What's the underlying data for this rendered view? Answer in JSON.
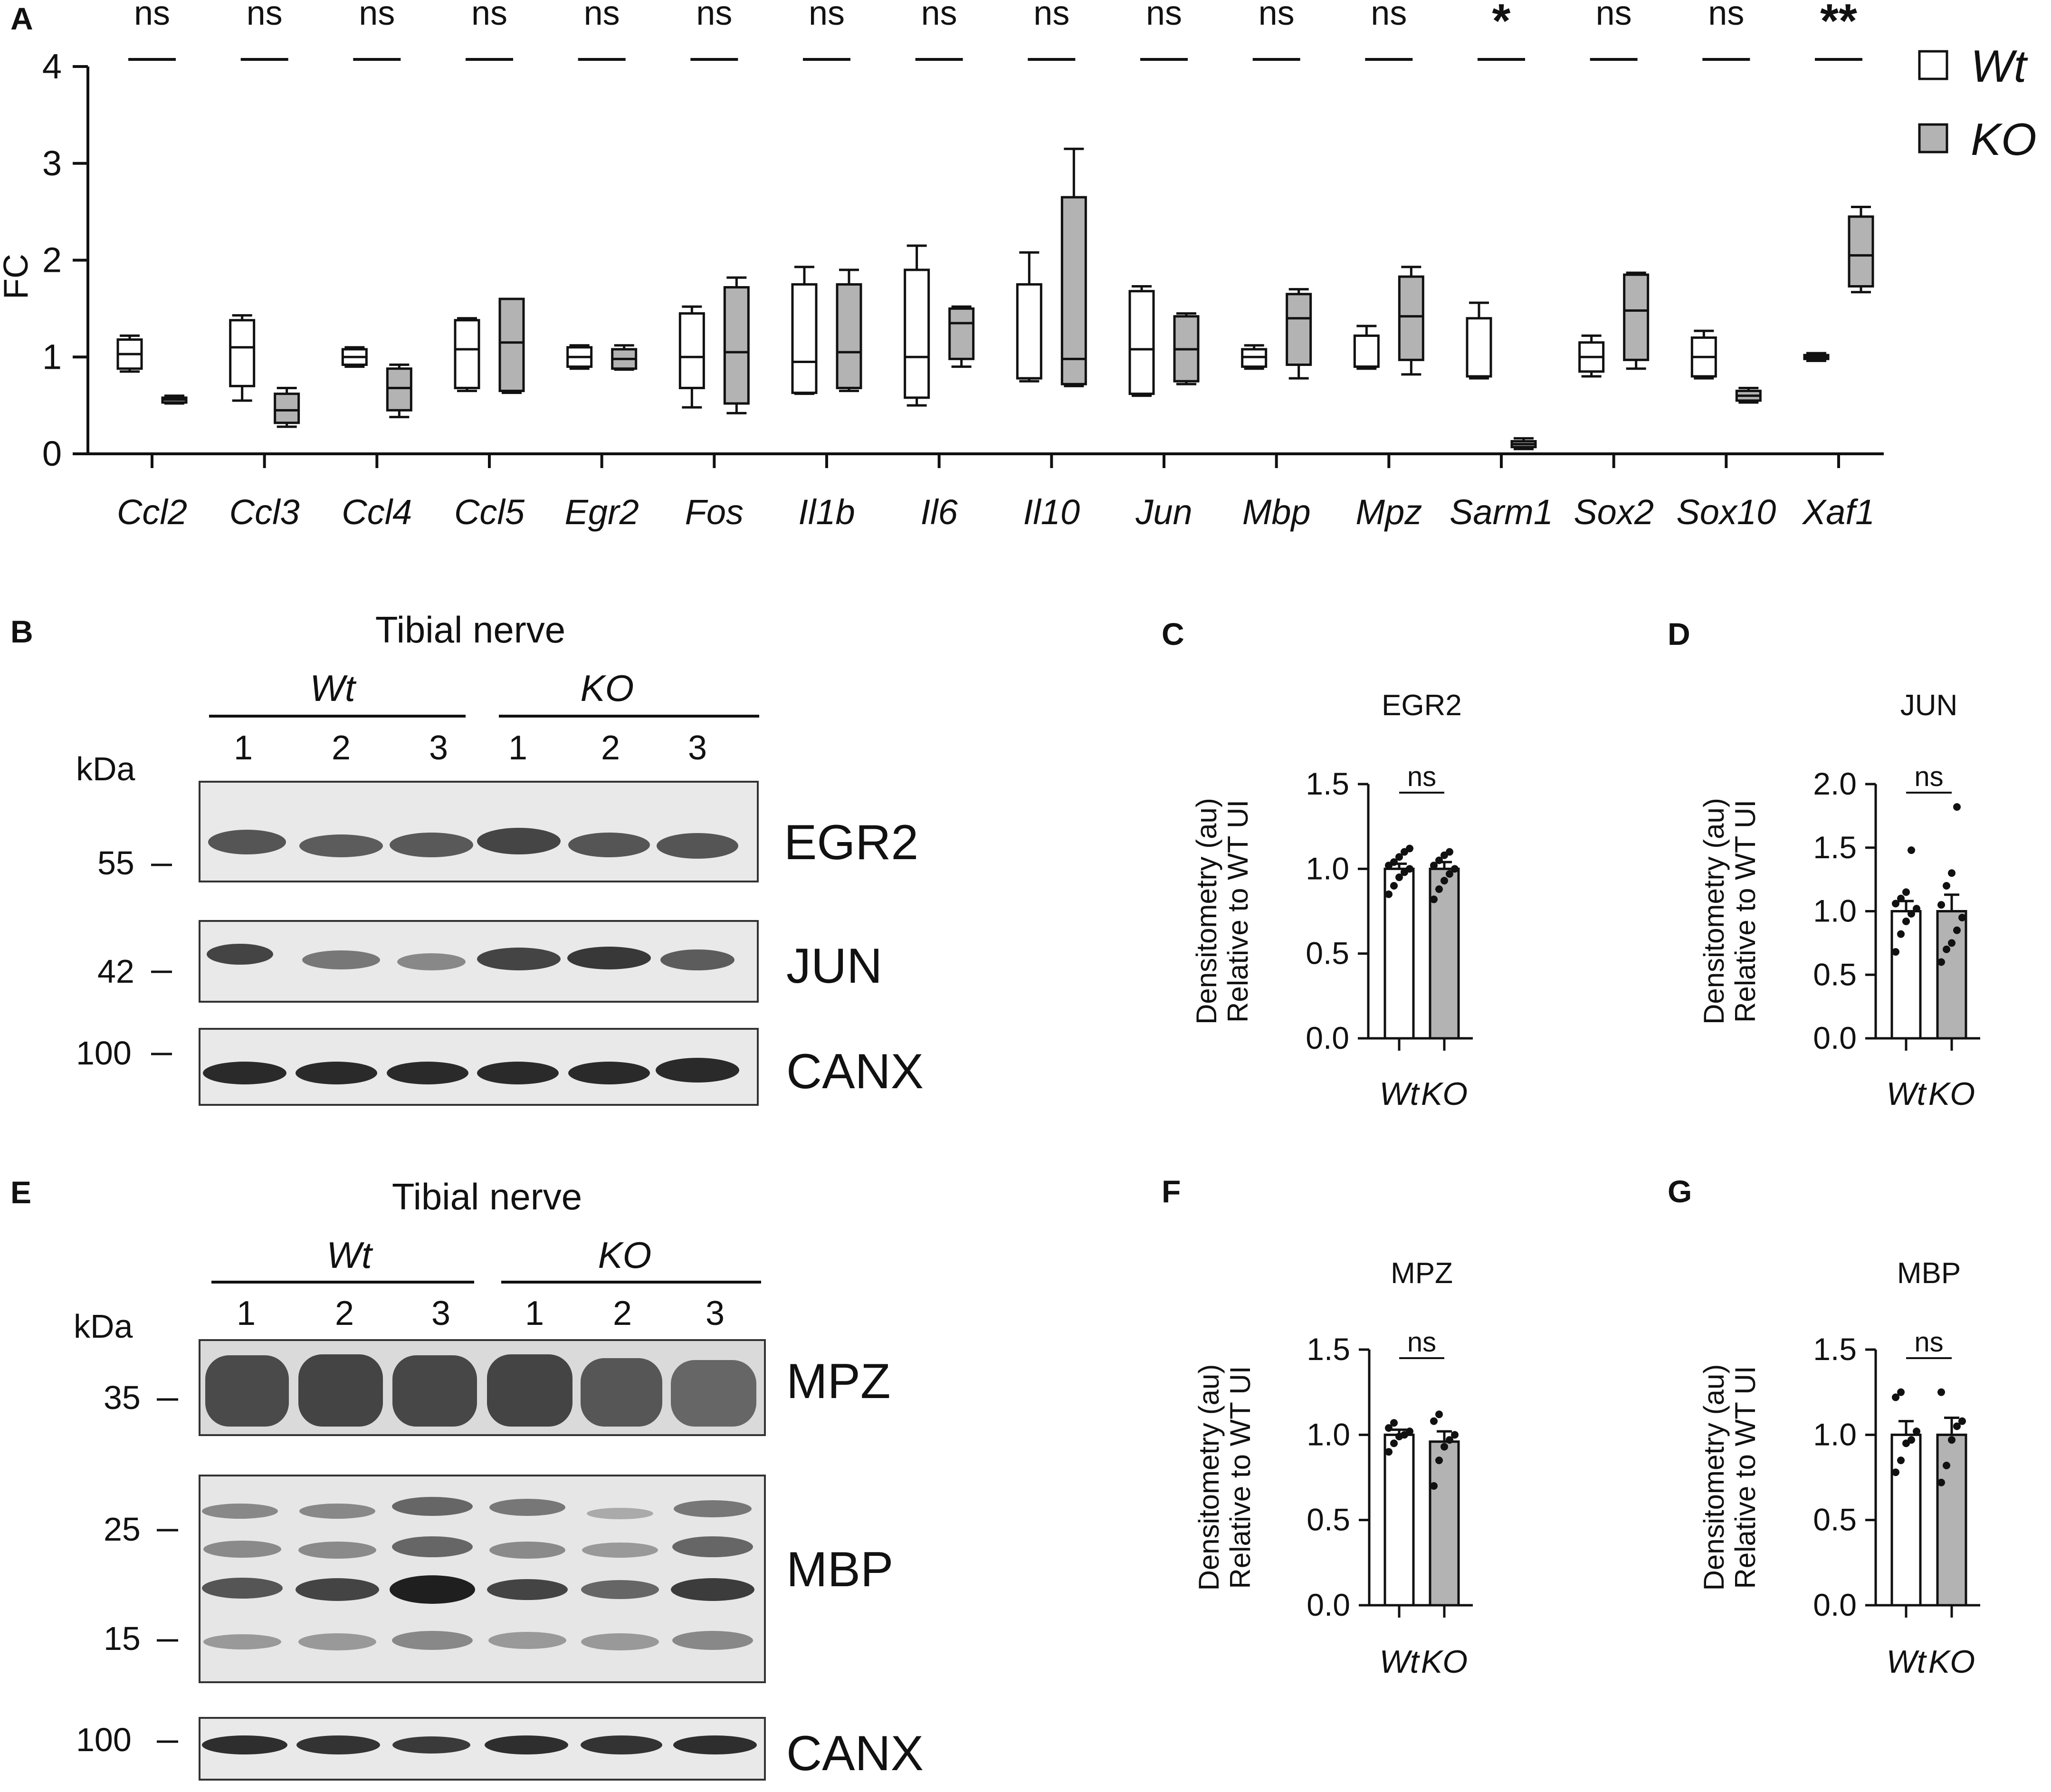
{
  "panels": {
    "A": "A",
    "B": "B",
    "C": "C",
    "D": "D",
    "E": "E",
    "F": "F",
    "G": "G"
  },
  "chart_data": [
    {
      "panel": "A",
      "type": "box",
      "ylabel": "FC",
      "ylim": [
        0,
        4
      ],
      "yticks": [
        "0",
        "1",
        "2",
        "3",
        "4"
      ],
      "categories": [
        "Ccl2",
        "Ccl3",
        "Ccl4",
        "Ccl5",
        "Egr2",
        "Fos",
        "Il1b",
        "Il6",
        "Il10",
        "Jun",
        "Mbp",
        "Mpz",
        "Sarm1",
        "Sox2",
        "Sox10",
        "Xaf1"
      ],
      "significance": [
        "ns",
        "ns",
        "ns",
        "ns",
        "ns",
        "ns",
        "ns",
        "ns",
        "ns",
        "ns",
        "ns",
        "ns",
        "*",
        "ns",
        "ns",
        "**"
      ],
      "legend": [
        {
          "name": "Wt",
          "color": "#ffffff"
        },
        {
          "name": "KO",
          "color": "#b3b3b3"
        }
      ],
      "series": [
        {
          "name": "Wt",
          "boxes": [
            {
              "min": 0.85,
              "q1": 0.88,
              "median": 1.03,
              "q3": 1.18,
              "max": 1.22
            },
            {
              "min": 0.55,
              "q1": 0.7,
              "median": 1.1,
              "q3": 1.38,
              "max": 1.43
            },
            {
              "min": 0.9,
              "q1": 0.92,
              "median": 1.0,
              "q3": 1.08,
              "max": 1.1
            },
            {
              "min": 0.65,
              "q1": 0.68,
              "median": 1.08,
              "q3": 1.38,
              "max": 1.4
            },
            {
              "min": 0.88,
              "q1": 0.9,
              "median": 1.0,
              "q3": 1.1,
              "max": 1.12
            },
            {
              "min": 0.48,
              "q1": 0.68,
              "median": 1.0,
              "q3": 1.45,
              "max": 1.52
            },
            {
              "min": 0.62,
              "q1": 0.63,
              "median": 0.95,
              "q3": 1.75,
              "max": 1.93
            },
            {
              "min": 0.5,
              "q1": 0.58,
              "median": 1.0,
              "q3": 1.9,
              "max": 2.15
            },
            {
              "min": 0.75,
              "q1": 0.78,
              "median": 0.78,
              "q3": 1.75,
              "max": 2.08
            },
            {
              "min": 0.6,
              "q1": 0.62,
              "median": 1.08,
              "q3": 1.68,
              "max": 1.73
            },
            {
              "min": 0.88,
              "q1": 0.9,
              "median": 1.0,
              "q3": 1.08,
              "max": 1.12
            },
            {
              "min": 0.88,
              "q1": 0.9,
              "median": 0.9,
              "q3": 1.22,
              "max": 1.32
            },
            {
              "min": 0.78,
              "q1": 0.8,
              "median": 0.8,
              "q3": 1.4,
              "max": 1.56
            },
            {
              "min": 0.8,
              "q1": 0.85,
              "median": 1.0,
              "q3": 1.15,
              "max": 1.22
            },
            {
              "min": 0.78,
              "q1": 0.8,
              "median": 1.0,
              "q3": 1.2,
              "max": 1.27
            },
            {
              "min": 0.96,
              "q1": 0.98,
              "median": 1.0,
              "q3": 1.02,
              "max": 1.04
            }
          ]
        },
        {
          "name": "KO",
          "boxes": [
            {
              "min": 0.52,
              "q1": 0.53,
              "median": 0.56,
              "q3": 0.58,
              "max": 0.6
            },
            {
              "min": 0.28,
              "q1": 0.32,
              "median": 0.45,
              "q3": 0.62,
              "max": 0.68
            },
            {
              "min": 0.38,
              "q1": 0.45,
              "median": 0.68,
              "q3": 0.88,
              "max": 0.92
            },
            {
              "min": 0.63,
              "q1": 0.65,
              "median": 1.15,
              "q3": 1.6,
              "max": 1.6
            },
            {
              "min": 0.87,
              "q1": 0.88,
              "median": 0.98,
              "q3": 1.08,
              "max": 1.12
            },
            {
              "min": 0.42,
              "q1": 0.52,
              "median": 1.05,
              "q3": 1.72,
              "max": 1.82
            },
            {
              "min": 0.65,
              "q1": 0.68,
              "median": 1.05,
              "q3": 1.75,
              "max": 1.9
            },
            {
              "min": 0.9,
              "q1": 0.98,
              "median": 1.35,
              "q3": 1.5,
              "max": 1.52
            },
            {
              "min": 0.7,
              "q1": 0.72,
              "median": 0.98,
              "q3": 2.65,
              "max": 3.15
            },
            {
              "min": 0.72,
              "q1": 0.75,
              "median": 1.08,
              "q3": 1.42,
              "max": 1.45
            },
            {
              "min": 0.78,
              "q1": 0.92,
              "median": 1.4,
              "q3": 1.65,
              "max": 1.7
            },
            {
              "min": 0.82,
              "q1": 0.97,
              "median": 1.42,
              "q3": 1.83,
              "max": 1.93
            },
            {
              "min": 0.05,
              "q1": 0.07,
              "median": 0.1,
              "q3": 0.13,
              "max": 0.16
            },
            {
              "min": 0.88,
              "q1": 0.97,
              "median": 1.48,
              "q3": 1.85,
              "max": 1.87
            },
            {
              "min": 0.53,
              "q1": 0.55,
              "median": 0.6,
              "q3": 0.65,
              "max": 0.68
            },
            {
              "min": 1.67,
              "q1": 1.73,
              "median": 2.05,
              "q3": 2.45,
              "max": 2.55
            }
          ]
        }
      ]
    },
    {
      "panel": "C",
      "type": "bar",
      "title": "EGR2",
      "ylabel": "Densitometry (au)\nRelative to WT UI",
      "ylim": [
        0,
        1.5
      ],
      "yticks": [
        "0.0",
        "0.5",
        "1.0",
        "1.5"
      ],
      "categories": [
        "Wt",
        "KO"
      ],
      "values": [
        1.0,
        1.0
      ],
      "sem": [
        0.03,
        0.04
      ],
      "points": [
        [
          0.85,
          0.9,
          0.95,
          0.98,
          1.0,
          1.02,
          1.04,
          1.07,
          1.1,
          1.12
        ],
        [
          0.82,
          0.88,
          0.93,
          0.97,
          1.0,
          1.02,
          1.05,
          1.08,
          1.1
        ]
      ],
      "significance": "ns"
    },
    {
      "panel": "D",
      "type": "bar",
      "title": "JUN",
      "ylabel": "Densitometry (au)\nRelative to WT UI",
      "ylim": [
        0,
        2.0
      ],
      "yticks": [
        "0.0",
        "0.5",
        "1.0",
        "1.5",
        "2.0"
      ],
      "categories": [
        "Wt",
        "KO"
      ],
      "values": [
        1.0,
        1.0
      ],
      "sem": [
        0.08,
        0.13
      ],
      "points": [
        [
          0.68,
          0.82,
          0.92,
          0.98,
          1.02,
          1.06,
          1.1,
          1.15,
          1.48
        ],
        [
          0.6,
          0.7,
          0.75,
          0.85,
          0.95,
          1.05,
          1.2,
          1.3,
          1.82
        ]
      ],
      "significance": "ns"
    },
    {
      "panel": "F",
      "type": "bar",
      "title": "MPZ",
      "ylabel": "Densitometry (au)\nRelative to WT UI",
      "ylim": [
        0,
        1.5
      ],
      "yticks": [
        "0.0",
        "0.5",
        "1.0",
        "1.5"
      ],
      "categories": [
        "Wt",
        "KO"
      ],
      "values": [
        1.0,
        0.96
      ],
      "sem": [
        0.03,
        0.06
      ],
      "points": [
        [
          0.9,
          0.95,
          0.99,
          1.0,
          1.02,
          1.04,
          1.07
        ],
        [
          0.7,
          0.85,
          0.93,
          0.97,
          1.0,
          1.08,
          1.12
        ]
      ],
      "significance": "ns"
    },
    {
      "panel": "G",
      "type": "bar",
      "title": "MBP",
      "ylabel": "Densitometry (au)\nRelative to WT UI",
      "ylim": [
        0,
        1.5
      ],
      "yticks": [
        "0.0",
        "0.5",
        "1.0",
        "1.5"
      ],
      "categories": [
        "Wt",
        "KO"
      ],
      "values": [
        1.0,
        1.0
      ],
      "sem": [
        0.08,
        0.1
      ],
      "points": [
        [
          0.78,
          0.85,
          0.95,
          0.97,
          1.02,
          1.22,
          1.25
        ],
        [
          0.72,
          0.82,
          0.97,
          1.05,
          1.08,
          1.25
        ]
      ],
      "significance": "ns"
    }
  ],
  "blots": [
    {
      "panel": "B",
      "header": "Tibial nerve",
      "groups": [
        "Wt",
        "KO"
      ],
      "lanes": [
        "1",
        "2",
        "3",
        "1",
        "2",
        "3"
      ],
      "kda_title": "kDa",
      "rows": [
        {
          "protein": "EGR2",
          "markers": [
            "55"
          ]
        },
        {
          "protein": "JUN",
          "markers": [
            "42"
          ]
        },
        {
          "protein": "CANX",
          "markers": [
            "100"
          ]
        }
      ]
    },
    {
      "panel": "E",
      "header": "Tibial nerve",
      "groups": [
        "Wt",
        "KO"
      ],
      "lanes": [
        "1",
        "2",
        "3",
        "1",
        "2",
        "3"
      ],
      "kda_title": "kDa",
      "rows": [
        {
          "protein": "MPZ",
          "markers": [
            "35"
          ]
        },
        {
          "protein": "MBP",
          "markers": [
            "25",
            "15"
          ]
        },
        {
          "protein": "CANX",
          "markers": [
            "100"
          ]
        }
      ]
    }
  ]
}
